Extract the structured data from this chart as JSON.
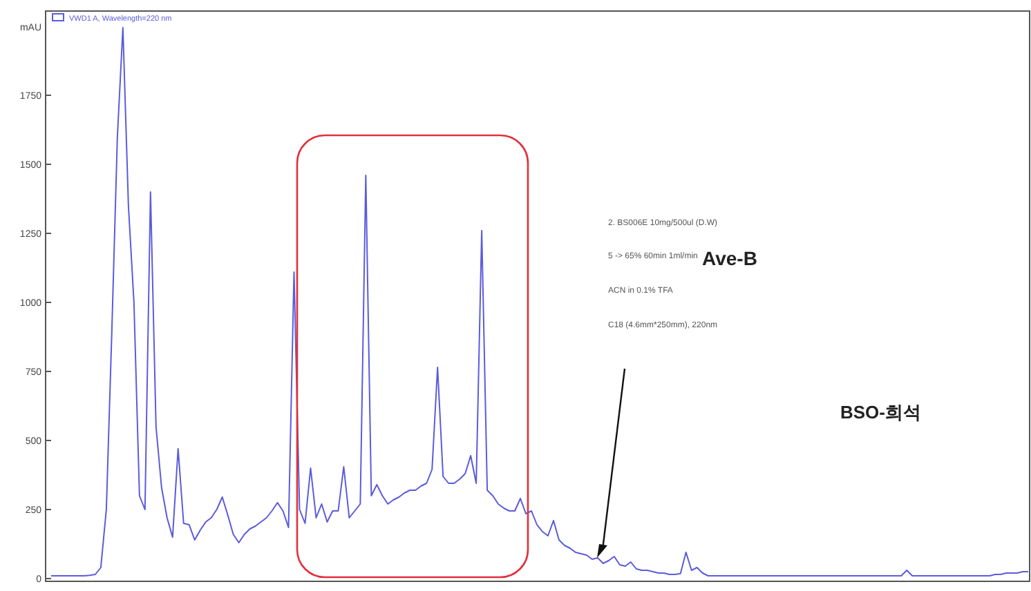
{
  "chart_data": {
    "type": "line",
    "ylabel": "mAU",
    "ylim": [
      -10,
      2055
    ],
    "yticks": [
      0,
      250,
      500,
      750,
      1000,
      1250,
      1500,
      1750
    ],
    "legend": "top left",
    "grid": false,
    "categories": [
      null,
      null,
      null,
      null,
      null,
      null,
      null,
      null,
      null,
      null,
      null,
      null,
      null,
      null,
      null,
      null,
      null,
      null,
      null,
      null,
      null,
      null,
      null,
      null,
      null,
      null,
      null,
      null,
      null,
      null,
      null,
      null,
      null,
      null,
      null,
      null,
      null,
      null,
      null,
      null,
      null,
      null,
      null,
      null,
      null,
      null,
      null,
      null,
      null,
      null,
      null,
      null,
      null,
      null,
      null,
      null,
      null,
      null,
      null,
      null,
      null,
      null,
      null,
      null,
      null,
      null,
      null,
      null,
      null,
      null,
      null,
      null,
      null,
      null,
      null,
      null,
      null,
      null,
      null,
      null,
      null,
      null,
      null,
      null,
      null,
      null,
      null,
      null,
      null,
      null,
      null,
      null,
      null,
      null,
      null,
      null,
      null,
      null,
      null,
      null,
      null,
      null,
      null,
      null,
      null,
      null,
      null,
      null,
      null,
      null,
      null,
      null,
      null,
      null,
      null,
      null,
      null,
      null,
      null,
      null,
      null,
      null,
      null,
      null,
      null,
      null,
      null,
      null,
      null,
      null,
      null,
      null,
      null,
      null,
      null,
      null,
      null,
      null,
      null,
      null,
      null,
      null,
      null,
      null,
      null,
      null,
      null,
      null,
      null,
      null,
      null,
      null,
      null,
      null,
      null,
      null,
      null,
      null,
      null,
      null,
      null,
      null,
      null,
      null,
      null,
      null,
      null,
      null,
      null,
      null,
      null,
      null,
      null,
      null,
      null,
      null,
      null,
      null
    ],
    "series": [
      {
        "name": "VWD1 A, Wavelength=220 nm",
        "color": "#5b5bdc",
        "values": [
          10,
          10,
          10,
          10,
          10,
          10,
          10,
          12,
          15,
          40,
          250,
          900,
          1600,
          1995,
          1350,
          1000,
          300,
          250,
          1400,
          550,
          330,
          220,
          150,
          470,
          200,
          195,
          140,
          175,
          205,
          220,
          250,
          295,
          230,
          160,
          130,
          160,
          180,
          190,
          205,
          220,
          245,
          275,
          245,
          185,
          1110,
          250,
          200,
          400,
          220,
          270,
          205,
          245,
          245,
          405,
          220,
          245,
          270,
          1460,
          300,
          340,
          300,
          270,
          285,
          295,
          310,
          320,
          320,
          335,
          345,
          395,
          765,
          370,
          345,
          345,
          360,
          380,
          445,
          345,
          1260,
          320,
          300,
          270,
          255,
          245,
          245,
          290,
          235,
          245,
          195,
          170,
          155,
          210,
          140,
          120,
          110,
          95,
          90,
          85,
          70,
          75,
          55,
          65,
          80,
          50,
          45,
          60,
          35,
          30,
          30,
          25,
          20,
          20,
          15,
          15,
          18,
          95,
          30,
          40,
          20,
          10,
          10,
          10,
          10,
          10,
          10,
          10,
          10,
          10,
          10,
          10,
          10,
          10,
          10,
          10,
          10,
          10,
          10,
          10,
          10,
          10,
          10,
          10,
          10,
          10,
          10,
          10,
          10,
          10,
          10,
          10,
          10,
          10,
          10,
          10,
          10,
          30,
          10,
          10,
          10,
          10,
          10,
          10,
          10,
          10,
          10,
          10,
          10,
          10,
          10,
          10,
          10,
          15,
          15,
          20,
          20,
          20,
          25,
          25
        ]
      }
    ],
    "annotations": [
      "2. BS006E 10mg/500ul (D.W)",
      "5 -> 65% 60min 1ml/min",
      "ACN in 0.1% TFA",
      "C18 (4.6mm*250mm), 220nm",
      "Ave-B",
      "BSO-희석"
    ]
  }
}
